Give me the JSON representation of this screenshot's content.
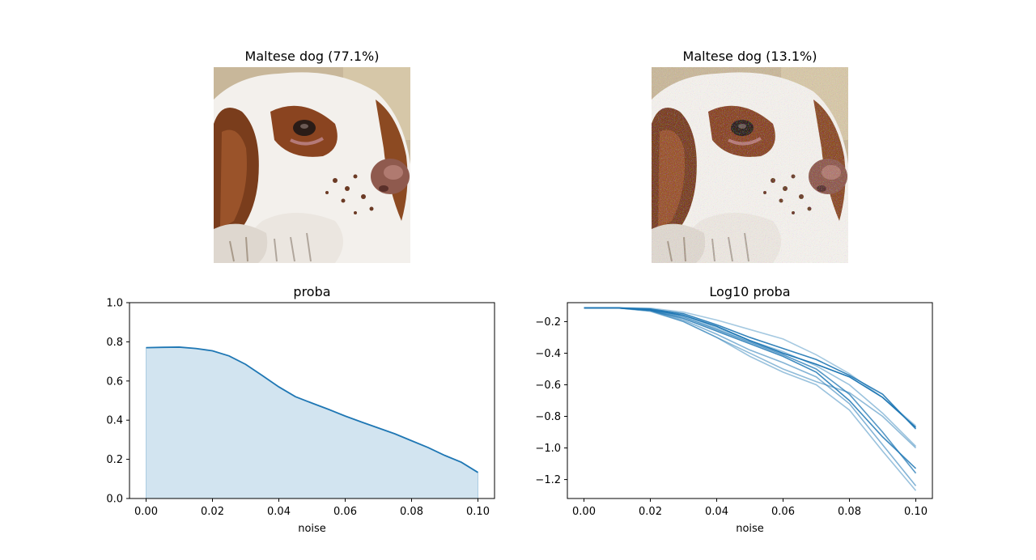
{
  "panels": {
    "original_title": "Maltese dog (77.1%)",
    "noisy_title": "Maltese dog (13.1%)"
  },
  "chart_data": [
    {
      "type": "area",
      "title": "proba",
      "xlabel": "noise",
      "ylabel": "",
      "xlim": [
        -0.005,
        0.105
      ],
      "ylim": [
        0.0,
        1.0
      ],
      "xticks": [
        0.0,
        0.02,
        0.04,
        0.06,
        0.08,
        0.1
      ],
      "xtick_labels": [
        "0.00",
        "0.02",
        "0.04",
        "0.06",
        "0.08",
        "0.10"
      ],
      "yticks": [
        0.0,
        0.2,
        0.4,
        0.6,
        0.8,
        1.0
      ],
      "ytick_labels": [
        "0.0",
        "0.2",
        "0.4",
        "0.6",
        "0.8",
        "1.0"
      ],
      "grid": false,
      "color": "#1f77b4",
      "fill_color": "#1f77b4",
      "fill_alpha": 0.2,
      "x": [
        0.0,
        0.005,
        0.01,
        0.015,
        0.02,
        0.025,
        0.03,
        0.035,
        0.04,
        0.045,
        0.05,
        0.055,
        0.06,
        0.065,
        0.07,
        0.075,
        0.08,
        0.085,
        0.09,
        0.095,
        0.1
      ],
      "values": [
        0.77,
        0.772,
        0.773,
        0.766,
        0.754,
        0.728,
        0.685,
        0.628,
        0.57,
        0.52,
        0.487,
        0.455,
        0.421,
        0.39,
        0.36,
        0.33,
        0.295,
        0.26,
        0.22,
        0.185,
        0.133
      ]
    },
    {
      "type": "line",
      "title": "Log10 proba",
      "xlabel": "noise",
      "ylabel": "",
      "xlim": [
        -0.005,
        0.105
      ],
      "ylim": [
        -1.32,
        -0.08
      ],
      "xticks": [
        0.0,
        0.02,
        0.04,
        0.06,
        0.08,
        0.1
      ],
      "xtick_labels": [
        "0.00",
        "0.02",
        "0.04",
        "0.06",
        "0.08",
        "0.10"
      ],
      "yticks": [
        -0.2,
        -0.4,
        -0.6,
        -0.8,
        -1.0,
        -1.2
      ],
      "ytick_labels": [
        "−0.2",
        "−0.4",
        "−0.6",
        "−0.8",
        "−1.0",
        "−1.2"
      ],
      "grid": false,
      "color": "#1f77b4",
      "x": [
        0.0,
        0.01,
        0.02,
        0.03,
        0.04,
        0.05,
        0.06,
        0.07,
        0.08,
        0.09,
        0.1
      ],
      "series": [
        {
          "values": [
            -0.113,
            -0.113,
            -0.125,
            -0.16,
            -0.23,
            -0.32,
            -0.4,
            -0.47,
            -0.55,
            -0.68,
            -0.87
          ],
          "alpha": 1.0
        },
        {
          "values": [
            -0.113,
            -0.113,
            -0.12,
            -0.15,
            -0.22,
            -0.3,
            -0.37,
            -0.44,
            -0.54,
            -0.66,
            -0.88
          ],
          "alpha": 0.9
        },
        {
          "values": [
            -0.113,
            -0.113,
            -0.13,
            -0.18,
            -0.26,
            -0.34,
            -0.42,
            -0.52,
            -0.7,
            -0.93,
            -1.13
          ],
          "alpha": 0.85
        },
        {
          "values": [
            -0.113,
            -0.113,
            -0.125,
            -0.17,
            -0.25,
            -0.33,
            -0.41,
            -0.5,
            -0.66,
            -0.9,
            -1.16
          ],
          "alpha": 0.75
        },
        {
          "values": [
            -0.113,
            -0.113,
            -0.115,
            -0.14,
            -0.19,
            -0.25,
            -0.31,
            -0.41,
            -0.53,
            -0.68,
            -0.86
          ],
          "alpha": 0.4
        },
        {
          "values": [
            -0.113,
            -0.113,
            -0.12,
            -0.16,
            -0.24,
            -0.32,
            -0.39,
            -0.48,
            -0.6,
            -0.78,
            -0.99
          ],
          "alpha": 0.45
        },
        {
          "values": [
            -0.113,
            -0.113,
            -0.135,
            -0.2,
            -0.3,
            -0.4,
            -0.5,
            -0.58,
            -0.65,
            -0.8,
            -1.0
          ],
          "alpha": 0.5
        },
        {
          "values": [
            -0.113,
            -0.113,
            -0.13,
            -0.19,
            -0.28,
            -0.38,
            -0.46,
            -0.55,
            -0.72,
            -0.98,
            -1.24
          ],
          "alpha": 0.55
        },
        {
          "values": [
            -0.113,
            -0.113,
            -0.13,
            -0.2,
            -0.3,
            -0.42,
            -0.52,
            -0.6,
            -0.76,
            -1.02,
            -1.27
          ],
          "alpha": 0.45
        }
      ]
    }
  ]
}
